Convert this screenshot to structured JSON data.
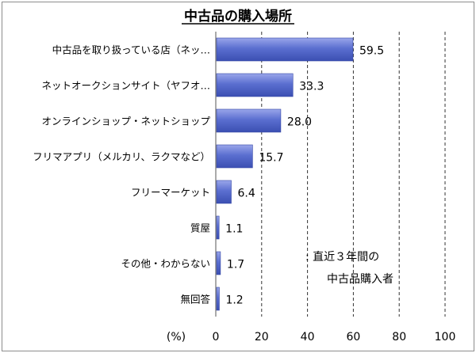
{
  "chart_data": {
    "type": "bar",
    "orientation": "horizontal",
    "title": "中古品の購入場所",
    "categories": [
      "中古品を取り扱っている店（ネッ…",
      "ネットオークションサイト（ヤフオ…",
      "オンラインショップ・ネットショップ",
      "フリマアプリ（メルカリ、ラクマなど）",
      "フリーマーケット",
      "質屋",
      "その他・わからない",
      "無回答"
    ],
    "values": [
      59.5,
      33.3,
      28.0,
      15.7,
      6.4,
      1.1,
      1.7,
      1.2
    ],
    "value_labels": [
      "59.5",
      "33.3",
      "28.0",
      "15.7",
      "6.4",
      "1.1",
      "1.7",
      "1.2"
    ],
    "xlim": [
      0,
      100
    ],
    "x_ticks": [
      "0",
      "20",
      "40",
      "60",
      "80",
      "100"
    ],
    "x_unit_label": "(%)",
    "grid": "vertical dashed",
    "note_lines": [
      ": 直近３年間の",
      "中古品購入者"
    ],
    "bar_color": "#5b6fd0"
  }
}
